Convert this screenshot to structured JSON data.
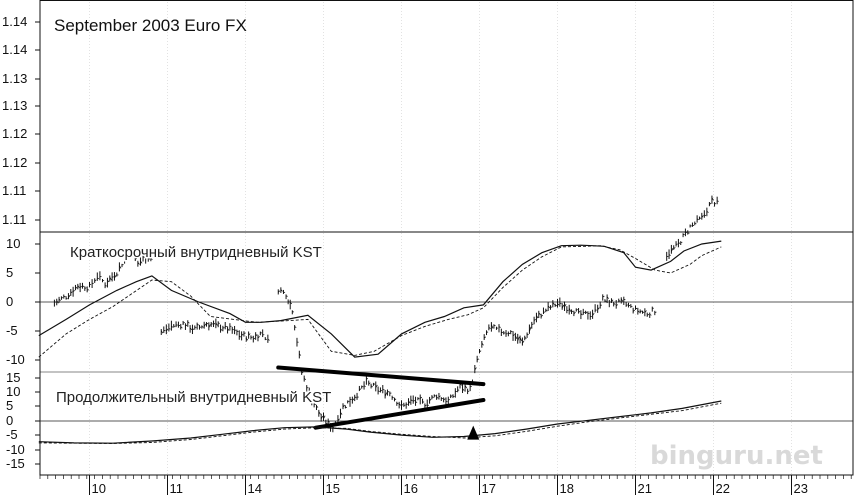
{
  "chart_data": {
    "type": "line",
    "title": "September 2003 Euro FX",
    "x_tick_labels": [
      "10",
      "11",
      "14",
      "15",
      "16",
      "17",
      "18",
      "21",
      "22",
      "23"
    ],
    "watermark": "binguru.net",
    "price_panel": {
      "type": "bar",
      "y_tick_labels": [
        "1.14",
        "1.14",
        "1.13",
        "1.13",
        "1.12",
        "1.12",
        "1.11",
        "1.11"
      ],
      "price_segments": [
        [
          [
            9.55,
            1.1305
          ],
          [
            9.7,
            1.1315
          ],
          [
            9.85,
            1.133
          ],
          [
            10.0,
            1.1328
          ],
          [
            10.1,
            1.1345
          ],
          [
            10.2,
            1.1333
          ],
          [
            10.35,
            1.135
          ],
          [
            10.45,
            1.1368
          ],
          [
            10.52,
            1.1378
          ],
          [
            10.62,
            1.1362
          ],
          [
            10.72,
            1.1372
          ],
          [
            10.82,
            1.1369
          ]
        ],
        [
          [
            10.92,
            1.1263
          ],
          [
            11.05,
            1.1272
          ],
          [
            11.2,
            1.1275
          ],
          [
            11.35,
            1.1267
          ],
          [
            11.5,
            1.1275
          ],
          [
            11.65,
            1.1272
          ],
          [
            11.8,
            1.1267
          ],
          [
            11.95,
            1.1258
          ],
          [
            12.1,
            1.1255
          ],
          [
            12.22,
            1.1262
          ],
          [
            12.32,
            1.1245
          ]
        ],
        [
          [
            12.42,
            1.1325
          ],
          [
            12.52,
            1.1318
          ],
          [
            12.6,
            1.1295
          ],
          [
            12.72,
            1.1205
          ],
          [
            12.85,
            1.1165
          ],
          [
            12.97,
            1.114
          ],
          [
            13.12,
            1.1125
          ],
          [
            13.25,
            1.1155
          ],
          [
            13.4,
            1.117
          ],
          [
            13.55,
            1.119
          ],
          [
            13.7,
            1.118
          ],
          [
            13.85,
            1.1175
          ],
          [
            14.0,
            1.1155
          ],
          [
            14.15,
            1.1165
          ],
          [
            14.3,
            1.116
          ],
          [
            14.45,
            1.1172
          ],
          [
            14.6,
            1.1162
          ],
          [
            14.75,
            1.1185
          ],
          [
            14.88,
            1.118
          ],
          [
            15.0,
            1.1235
          ],
          [
            15.12,
            1.127
          ],
          [
            15.25,
            1.1265
          ],
          [
            15.4,
            1.1262
          ],
          [
            15.55,
            1.1248
          ],
          [
            15.7,
            1.128
          ],
          [
            15.85,
            1.1295
          ],
          [
            16.0,
            1.1305
          ],
          [
            16.15,
            1.1298
          ],
          [
            16.3,
            1.1288
          ],
          [
            16.45,
            1.129
          ],
          [
            16.58,
            1.131
          ],
          [
            16.72,
            1.1305
          ],
          [
            16.85,
            1.1305
          ],
          [
            17.0,
            1.1295
          ],
          [
            17.15,
            1.129
          ],
          [
            17.28,
            1.1295
          ]
        ],
        [
          [
            17.4,
            1.1375
          ],
          [
            17.55,
            1.139
          ],
          [
            17.7,
            1.1415
          ],
          [
            17.85,
            1.1428
          ],
          [
            17.98,
            1.1452
          ],
          [
            18.08,
            1.1448
          ]
        ]
      ]
    },
    "triangle": {
      "upper": [
        [
          12.42,
          1.1212
        ],
        [
          15.05,
          1.1188
        ]
      ],
      "lower": [
        [
          12.9,
          1.1125
        ],
        [
          15.05,
          1.1165
        ]
      ]
    },
    "arrow": {
      "x": 14.92,
      "from_kst_short": 0.0,
      "to_price": 1.1128
    },
    "short_kst_panel": {
      "label": "Краткосрочный внутридневный KST",
      "y_tick_labels": [
        "10",
        "5",
        "0",
        "-5",
        "-10"
      ],
      "ylim": [
        -10,
        10
      ],
      "series": [
        {
          "line_style": "solid",
          "x": [
            9.35,
            9.7,
            10.0,
            10.35,
            10.6,
            10.8,
            11.05,
            11.4,
            11.8,
            12.0,
            12.2,
            12.45,
            12.8,
            13.1,
            13.4,
            13.7,
            14.0,
            14.3,
            14.55,
            14.8,
            15.05,
            15.3,
            15.55,
            15.8,
            16.05,
            16.3,
            16.45,
            16.6,
            16.85,
            17.0,
            17.2,
            17.45,
            17.62,
            17.85,
            18.1
          ],
          "y": [
            -5.8,
            -3.0,
            -0.5,
            2.0,
            3.5,
            4.5,
            2.0,
            0,
            -2.0,
            -3.5,
            -3.5,
            -3.2,
            -2.3,
            -5.5,
            -9.5,
            -9.0,
            -5.5,
            -3.5,
            -2.5,
            -1.0,
            -0.5,
            3.5,
            6.5,
            8.5,
            9.7,
            9.8,
            9.7,
            9.6,
            8.5,
            6.0,
            5.5,
            7.0,
            8.8,
            10.0,
            10.5
          ]
        },
        {
          "line_style": "dashed",
          "x": [
            9.35,
            9.7,
            10.0,
            10.3,
            10.55,
            10.8,
            11.05,
            11.3,
            11.55,
            11.85,
            12.15,
            12.45,
            12.8,
            13.1,
            13.4,
            13.65,
            14.0,
            14.3,
            14.6,
            14.85,
            15.05,
            15.3,
            15.55,
            15.8,
            16.05,
            16.35,
            16.55,
            16.8,
            17.0,
            17.25,
            17.45,
            17.7,
            17.85,
            18.1
          ],
          "y": [
            -9.5,
            -5.5,
            -3.0,
            -0.8,
            1.5,
            3.8,
            3.5,
            1.0,
            -2.5,
            -3.0,
            -3.5,
            -3.3,
            -3.0,
            -8.5,
            -9.2,
            -8.5,
            -5.8,
            -4.2,
            -3.0,
            -2.2,
            -1.0,
            2.5,
            5.5,
            7.8,
            9.5,
            9.6,
            9.7,
            9.0,
            7.5,
            5.5,
            5.0,
            6.5,
            8.0,
            9.5
          ]
        }
      ]
    },
    "long_kst_panel": {
      "label": "Продолжительный внутридневный KST",
      "y_tick_labels": [
        "15",
        "10",
        "5",
        "0",
        "-5",
        "-10",
        "-15"
      ],
      "ylim": [
        -15,
        15
      ],
      "series": [
        {
          "line_style": "solid",
          "x": [
            9.35,
            9.8,
            10.3,
            10.8,
            11.3,
            11.7,
            12.1,
            12.5,
            12.9,
            13.3,
            13.6,
            14.0,
            14.4,
            14.8,
            15.2,
            15.6,
            16.0,
            16.4,
            16.8,
            17.2,
            17.6,
            18.1
          ],
          "y": [
            -14.0,
            -14.8,
            -15.0,
            -13.5,
            -11.5,
            -9.0,
            -6.5,
            -4.5,
            -4.0,
            -5.5,
            -7.5,
            -9.5,
            -11.0,
            -10.5,
            -8.5,
            -5.5,
            -2.0,
            0.5,
            3.0,
            5.5,
            8.5,
            13.5
          ]
        },
        {
          "line_style": "dashed",
          "x": [
            9.35,
            9.8,
            10.3,
            10.8,
            11.3,
            11.7,
            12.1,
            12.5,
            12.9,
            13.3,
            13.6,
            14.0,
            14.4,
            14.8,
            15.2,
            15.6,
            16.0,
            16.4,
            16.8,
            17.2,
            17.6,
            18.1
          ],
          "y": [
            -14.8,
            -15.0,
            -15.2,
            -14.5,
            -12.5,
            -10.0,
            -7.5,
            -5.5,
            -4.5,
            -5.0,
            -7.0,
            -9.0,
            -10.5,
            -11.5,
            -10.0,
            -7.0,
            -3.5,
            -0.5,
            2.0,
            4.5,
            7.0,
            12.0
          ]
        }
      ]
    }
  }
}
